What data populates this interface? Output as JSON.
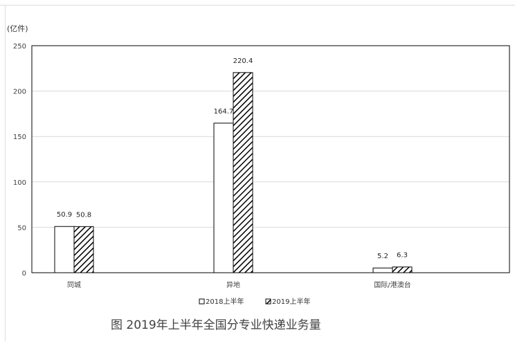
{
  "chart_data": {
    "type": "bar",
    "caption": "图 2019年上半年全国分专业快递业务量",
    "unit_label": "(亿件)",
    "categories": [
      "同城",
      "异地",
      "国际/港澳台"
    ],
    "series": [
      {
        "name": "2018上半年",
        "values": [
          50.9,
          164.7,
          5.2
        ],
        "pattern": "hollow",
        "fill": "#ffffff",
        "stroke": "#000000"
      },
      {
        "name": "2019上半年",
        "values": [
          50.8,
          220.4,
          6.3
        ],
        "pattern": "diagonal-hatch",
        "fill": "#000000",
        "stroke": "#000000"
      }
    ],
    "data_labels": [
      [
        "50.9",
        "164.7",
        "5.2"
      ],
      [
        "50.8",
        "220.4",
        "6.3"
      ]
    ],
    "yticks": [
      "0",
      "50",
      "100",
      "150",
      "200",
      "250"
    ],
    "ylim": [
      0,
      250
    ],
    "grid": true,
    "legend_position": "bottom"
  },
  "colors": {
    "gridline": "#d9d9d9",
    "axis": "#000000",
    "text": "#404040"
  }
}
